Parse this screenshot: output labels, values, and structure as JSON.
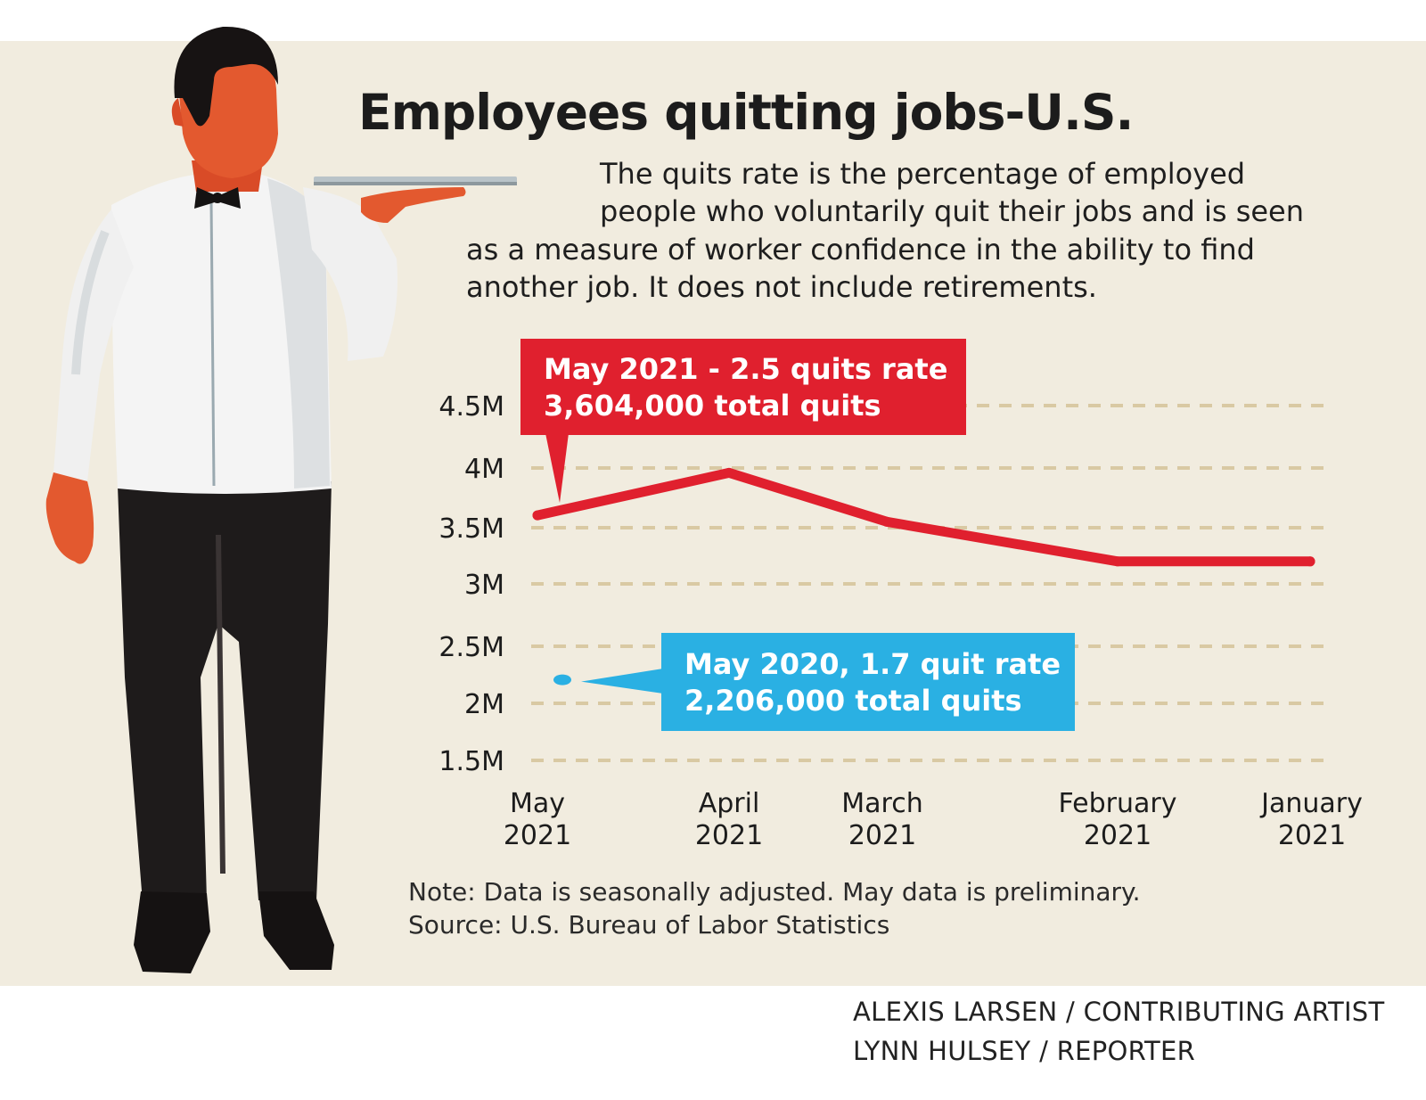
{
  "title": "Employees quitting jobs-U.S.",
  "description": [
    "The quits rate is the percentage of employed",
    "people who voluntarily quit their jobs and is seen",
    "as a measure of worker confidence in the ability to find",
    "another job. It  does not include retirements."
  ],
  "colors": {
    "background": "#f1ecdf",
    "line": "#e0202e",
    "callout_2021": "#e0202e",
    "callout_2020": "#2ab0e3",
    "gridline": "#d9c9a3"
  },
  "chart_data": {
    "type": "line",
    "x": [
      "May 2021",
      "April 2021",
      "March 2021",
      "February 2021",
      "January 2021"
    ],
    "xticks": [
      {
        "line1": "May",
        "line2": "2021"
      },
      {
        "line1": "April",
        "line2": "2021"
      },
      {
        "line1": "March",
        "line2": "2021"
      },
      {
        "line1": "February",
        "line2": "2021"
      },
      {
        "line1": "January",
        "line2": "2021"
      }
    ],
    "series": [
      {
        "values": [
          3604000,
          3960000,
          3550000,
          3200000,
          3200000
        ]
      }
    ],
    "ylim": [
      1500000,
      4500000
    ],
    "yticks": [
      {
        "value": 4500000,
        "label": "4.5M"
      },
      {
        "value": 4000000,
        "label": "4M"
      },
      {
        "value": 3500000,
        "label": "3.5M"
      },
      {
        "value": 3000000,
        "label": "3M"
      },
      {
        "value": 2500000,
        "label": "2.5M"
      },
      {
        "value": 2000000,
        "label": "2M"
      },
      {
        "value": 1500000,
        "label": "1.5M"
      }
    ],
    "grid": true,
    "comparison_point": {
      "x": "May 2020",
      "value": 2206000
    },
    "annotations": {
      "may_2021": {
        "line1": "May 2021 - 2.5 quits rate",
        "line2": "3,604,000 total quits"
      },
      "may_2020": {
        "line1": "May 2020, 1.7 quit rate",
        "line2": "2,206,000 total quits"
      }
    }
  },
  "notes": [
    "Note: Data is seasonally adjusted. May data is preliminary.",
    "Source: U.S. Bureau of Labor Statistics"
  ],
  "credits": [
    "ALEXIS LARSEN / CONTRIBUTING ARTIST",
    "LYNN HULSEY / REPORTER"
  ]
}
